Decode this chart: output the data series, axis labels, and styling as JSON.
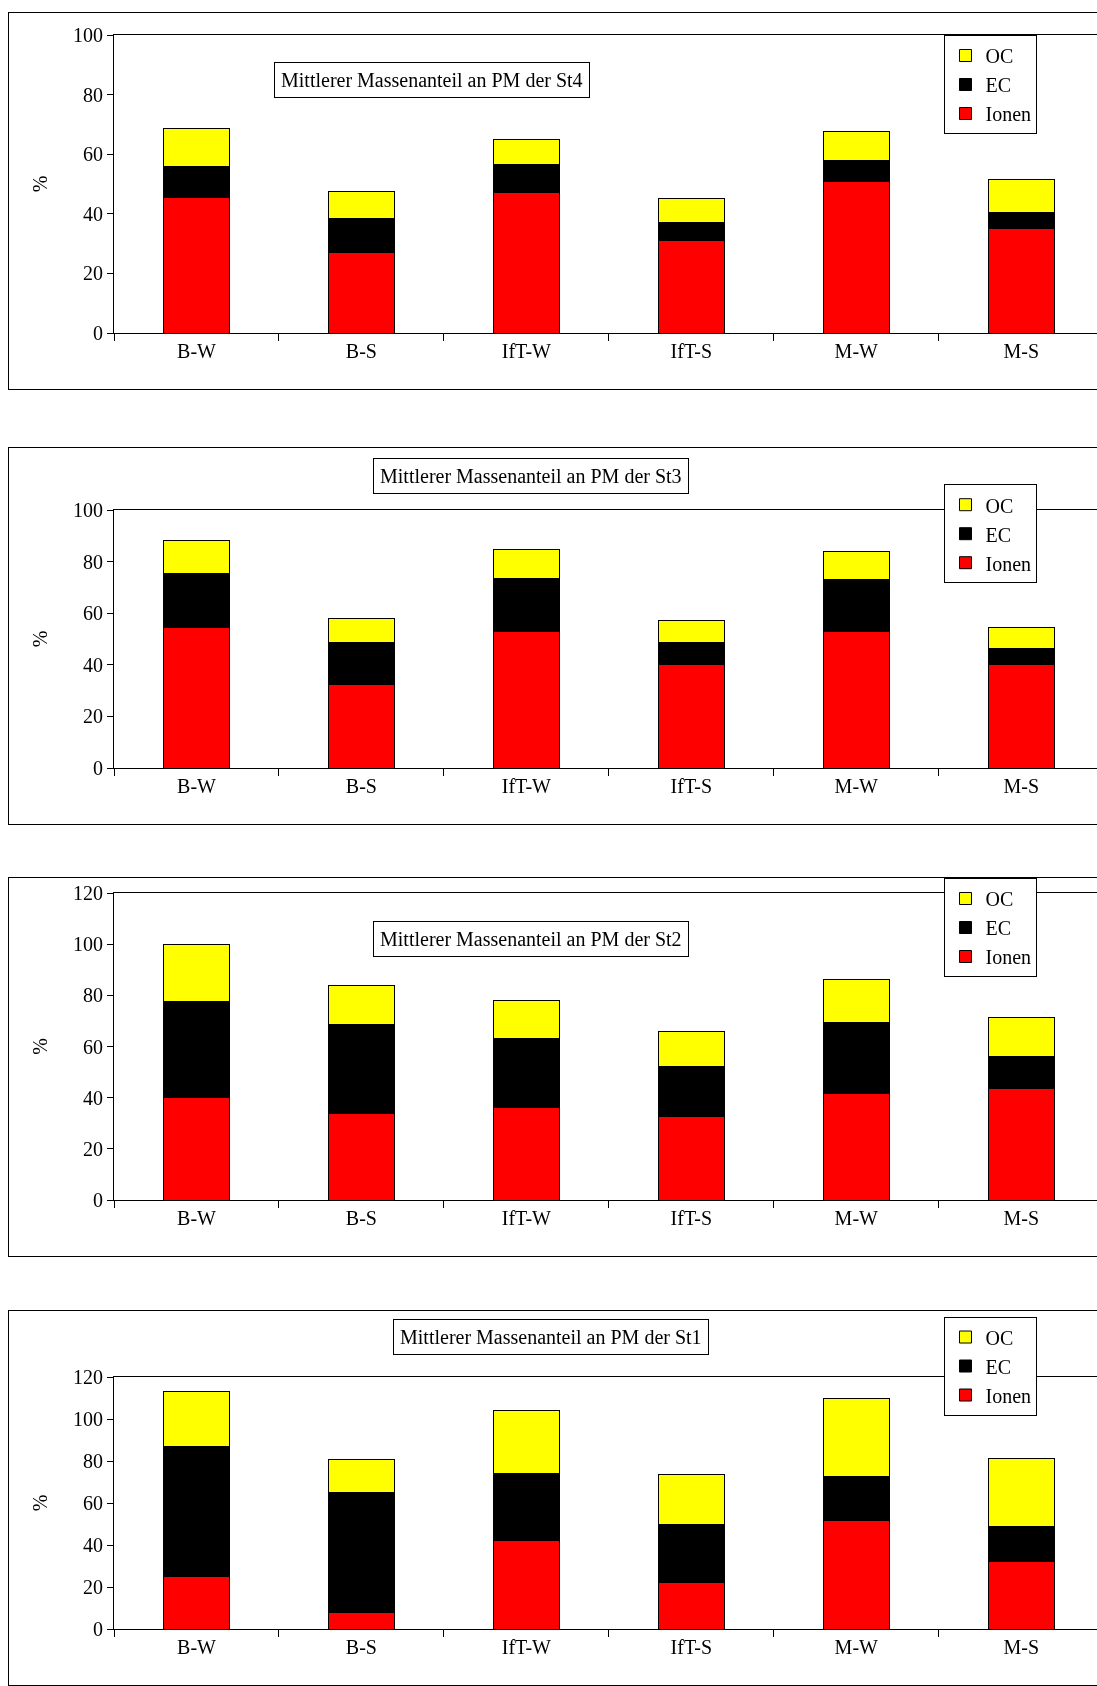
{
  "chart_data": [
    {
      "type": "bar",
      "title": "Mittlerer Massenanteil an PM der St4",
      "ylabel": "%",
      "categories": [
        "B-W",
        "B-S",
        "IfT-W",
        "IfT-S",
        "M-W",
        "M-S"
      ],
      "stacked": true,
      "ylim": [
        0,
        100
      ],
      "yticks": [
        0,
        20,
        40,
        60,
        80,
        100
      ],
      "grid": false,
      "legend": "top right",
      "series": [
        {
          "name": "Ionen",
          "color": "#ff0000",
          "values": [
            45.5,
            27,
            47,
            31,
            51,
            35
          ]
        },
        {
          "name": "EC",
          "color": "#000000",
          "values": [
            10.5,
            11.5,
            9.5,
            6,
            7,
            5.5
          ]
        },
        {
          "name": "OC",
          "color": "#ffff00",
          "values": [
            12.5,
            9,
            8.5,
            8,
            9.5,
            11
          ]
        }
      ]
    },
    {
      "type": "bar",
      "title": "Mittlerer Massenanteil an PM der St3",
      "ylabel": "%",
      "categories": [
        "B-W",
        "B-S",
        "IfT-W",
        "IfT-S",
        "M-W",
        "M-S"
      ],
      "stacked": true,
      "ylim": [
        0,
        100
      ],
      "yticks": [
        0,
        20,
        40,
        60,
        80,
        100
      ],
      "grid": false,
      "legend": "top right",
      "series": [
        {
          "name": "Ionen",
          "color": "#ff0000",
          "values": [
            54.5,
            32.5,
            53,
            40,
            53,
            40
          ]
        },
        {
          "name": "EC",
          "color": "#000000",
          "values": [
            21,
            16,
            20.5,
            8.5,
            20,
            6.5
          ]
        },
        {
          "name": "OC",
          "color": "#ffff00",
          "values": [
            12.5,
            9.5,
            11,
            8.5,
            11,
            8
          ]
        }
      ]
    },
    {
      "type": "bar",
      "title": "Mittlerer Massenanteil an PM der St2",
      "ylabel": "%",
      "categories": [
        "B-W",
        "B-S",
        "IfT-W",
        "IfT-S",
        "M-W",
        "M-S"
      ],
      "stacked": true,
      "ylim": [
        0,
        120
      ],
      "yticks": [
        0,
        20,
        40,
        60,
        80,
        100,
        120
      ],
      "grid": false,
      "legend": "top right",
      "series": [
        {
          "name": "Ionen",
          "color": "#ff0000",
          "values": [
            40,
            34,
            36,
            32.5,
            41.5,
            43.5
          ]
        },
        {
          "name": "EC",
          "color": "#000000",
          "values": [
            37.5,
            34.5,
            27,
            19.5,
            28,
            12.5
          ]
        },
        {
          "name": "OC",
          "color": "#ffff00",
          "values": [
            22.5,
            15.5,
            15,
            14,
            16.5,
            15.5
          ]
        }
      ]
    },
    {
      "type": "bar",
      "title": "Mittlerer Massenanteil an PM der St1",
      "ylabel": "%",
      "categories": [
        "B-W",
        "B-S",
        "IfT-W",
        "IfT-S",
        "M-W",
        "M-S"
      ],
      "stacked": true,
      "ylim": [
        0,
        120
      ],
      "yticks": [
        0,
        20,
        40,
        60,
        80,
        100,
        120
      ],
      "grid": false,
      "legend": "top right",
      "series": [
        {
          "name": "Ionen",
          "color": "#ff0000",
          "values": [
            25,
            8,
            42,
            22,
            51.5,
            32
          ]
        },
        {
          "name": "EC",
          "color": "#000000",
          "values": [
            62,
            57,
            32,
            28,
            21,
            17
          ]
        },
        {
          "name": "OC",
          "color": "#ffff00",
          "values": [
            26,
            15.5,
            30,
            23.5,
            37.5,
            32
          ]
        }
      ]
    }
  ]
}
